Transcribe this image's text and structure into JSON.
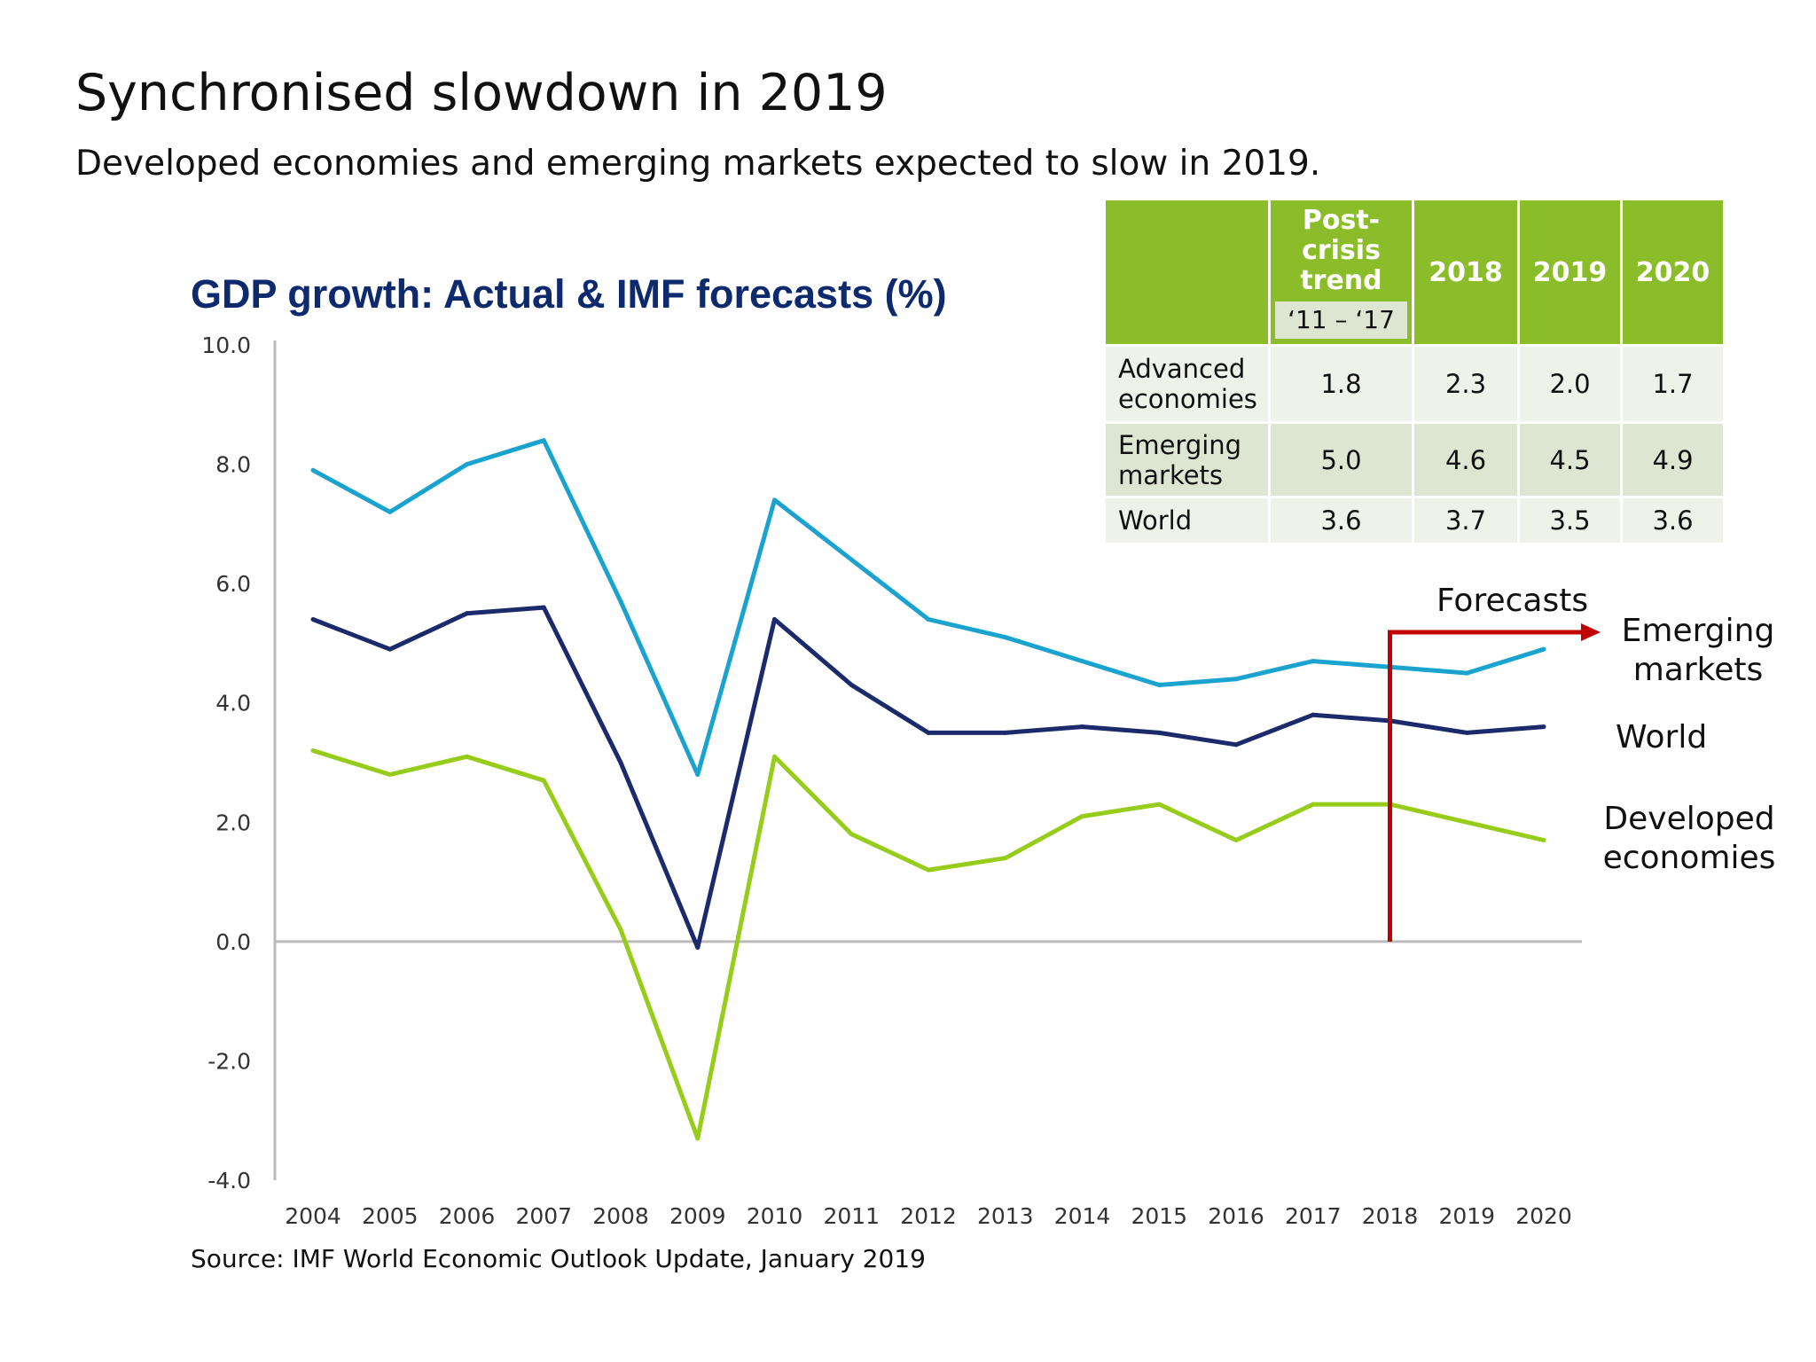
{
  "title": "Synchronised slowdown in 2019",
  "subtitle": "Developed economies and emerging markets expected to slow in 2019.",
  "source": "Source: IMF World Economic Outlook Update, January 2019",
  "table": {
    "headers": [
      "",
      "Post-crisis trend",
      "2018",
      "2019",
      "2020"
    ],
    "period": "‘11 – ‘17",
    "rows": [
      {
        "label": "Advanced economies",
        "values": [
          "1.8",
          "2.3",
          "2.0",
          "1.7"
        ]
      },
      {
        "label": "Emerging markets",
        "values": [
          "5.0",
          "4.6",
          "4.5",
          "4.9"
        ]
      },
      {
        "label": "World",
        "values": [
          "3.6",
          "3.7",
          "3.5",
          "3.6"
        ]
      }
    ],
    "header_color": "#8bbd2a"
  },
  "annotations": {
    "forecasts": "Forecasts",
    "forecast_start": "2018",
    "forecast_color": "#c00000"
  },
  "chart_data": {
    "type": "line",
    "title": "GDP growth: Actual & IMF forecasts (%)",
    "xlabel": "",
    "ylabel": "",
    "x": [
      "2004",
      "2005",
      "2006",
      "2007",
      "2008",
      "2009",
      "2010",
      "2011",
      "2012",
      "2013",
      "2014",
      "2015",
      "2016",
      "2017",
      "2018",
      "2019",
      "2020"
    ],
    "ylim": [
      -4.0,
      10.0
    ],
    "yticks": [
      "10.0",
      "8.0",
      "6.0",
      "4.0",
      "2.0",
      "0.0",
      "-2.0",
      "-4.0"
    ],
    "grid": false,
    "legend": "direct labels at right",
    "series": [
      {
        "name": "Emerging markets",
        "color": "#1ba3cf",
        "values": [
          7.9,
          7.2,
          8.0,
          8.4,
          5.7,
          2.8,
          7.4,
          6.4,
          5.4,
          5.1,
          4.7,
          4.3,
          4.4,
          4.7,
          4.6,
          4.5,
          4.9
        ]
      },
      {
        "name": "World",
        "color": "#1b2a6b",
        "values": [
          5.4,
          4.9,
          5.5,
          5.6,
          3.0,
          -0.1,
          5.4,
          4.3,
          3.5,
          3.5,
          3.6,
          3.5,
          3.3,
          3.8,
          3.7,
          3.5,
          3.6
        ]
      },
      {
        "name": "Developed economies",
        "color": "#97cc1b",
        "values": [
          3.2,
          2.8,
          3.1,
          2.7,
          0.2,
          -3.3,
          3.1,
          1.8,
          1.2,
          1.4,
          2.1,
          2.3,
          1.7,
          2.3,
          2.3,
          2.0,
          1.7
        ]
      }
    ]
  }
}
